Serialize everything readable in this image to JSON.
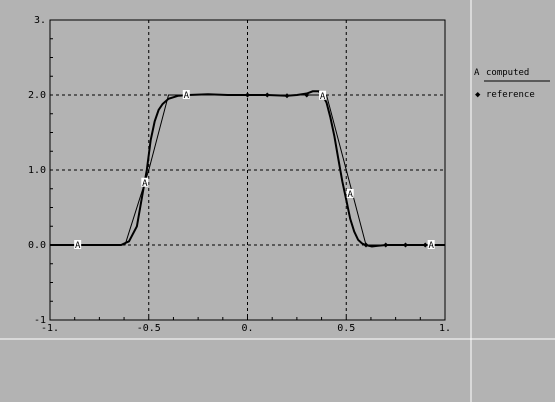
{
  "chart_data": {
    "type": "line",
    "xlim": [
      -1,
      1
    ],
    "ylim": [
      -1,
      3
    ],
    "x_ticks": [
      {
        "value": -1,
        "label": "-1."
      },
      {
        "value": -0.5,
        "label": "-0.5"
      },
      {
        "value": 0,
        "label": "0."
      },
      {
        "value": 0.5,
        "label": "0.5"
      },
      {
        "value": 1,
        "label": "1."
      }
    ],
    "y_ticks": [
      {
        "value": -1,
        "label": "-1"
      },
      {
        "value": 0,
        "label": "0.0"
      },
      {
        "value": 1,
        "label": "1.0"
      },
      {
        "value": 2,
        "label": "2.0"
      },
      {
        "value": 3,
        "label": "3."
      }
    ],
    "grid": true,
    "legend": "right",
    "series": [
      {
        "name": "computed",
        "marker": "A",
        "color": "#000000",
        "x": [
          -1.0,
          -0.9,
          -0.8,
          -0.7,
          -0.64,
          -0.6,
          -0.56,
          -0.53,
          -0.51,
          -0.49,
          -0.47,
          -0.45,
          -0.43,
          -0.4,
          -0.35,
          -0.3,
          -0.2,
          -0.1,
          0.0,
          0.1,
          0.2,
          0.25,
          0.3,
          0.33,
          0.36,
          0.38,
          0.4,
          0.42,
          0.44,
          0.46,
          0.48,
          0.5,
          0.52,
          0.54,
          0.56,
          0.58,
          0.6,
          0.63,
          0.66,
          0.7,
          0.8,
          0.9,
          1.0
        ],
        "y": [
          0,
          0,
          0,
          0,
          0,
          0.05,
          0.25,
          0.7,
          1.0,
          1.4,
          1.65,
          1.8,
          1.88,
          1.95,
          1.99,
          2.0,
          2.01,
          2.0,
          2.0,
          2.0,
          1.99,
          2.0,
          2.02,
          2.05,
          2.05,
          2.0,
          1.9,
          1.7,
          1.45,
          1.15,
          0.85,
          0.6,
          0.35,
          0.18,
          0.07,
          0.02,
          0,
          -0.02,
          -0.01,
          0,
          0,
          0,
          0
        ],
        "marker_points": [
          {
            "x": -0.86,
            "y": 0.0
          },
          {
            "x": -0.52,
            "y": 0.83
          },
          {
            "x": -0.31,
            "y": 2.0
          },
          {
            "x": 0.38,
            "y": 1.99
          },
          {
            "x": 0.52,
            "y": 0.68
          },
          {
            "x": 0.93,
            "y": 0.0
          }
        ]
      },
      {
        "name": "reference",
        "marker": "◆",
        "color": "#000000",
        "x": [
          -0.5,
          -0.5,
          0.5,
          0.5,
          0.6,
          0.7,
          0.8,
          0.9,
          1.0
        ],
        "y": [
          0,
          1,
          1,
          0,
          0,
          0,
          0,
          0,
          0
        ],
        "x_shape": [
          -1.0,
          -0.62,
          -0.5,
          -0.4,
          0.0,
          0.3,
          0.4,
          0.5,
          0.6,
          1.0
        ],
        "y_shape": [
          0,
          0,
          1.0,
          2.0,
          2.0,
          2.0,
          2.0,
          1.0,
          0,
          0
        ],
        "marker_points": [
          {
            "x": 0.0,
            "y": 2.0
          },
          {
            "x": 0.1,
            "y": 2.0
          },
          {
            "x": 0.2,
            "y": 1.99
          },
          {
            "x": 0.3,
            "y": 2.0
          },
          {
            "x": 0.6,
            "y": 0.0
          },
          {
            "x": 0.7,
            "y": 0.0
          },
          {
            "x": 0.8,
            "y": 0.0
          },
          {
            "x": 0.9,
            "y": 0.0
          }
        ]
      }
    ]
  },
  "legend": {
    "computed_label": "computed",
    "reference_label": "reference",
    "computed_marker": "A",
    "reference_marker": "◆"
  }
}
